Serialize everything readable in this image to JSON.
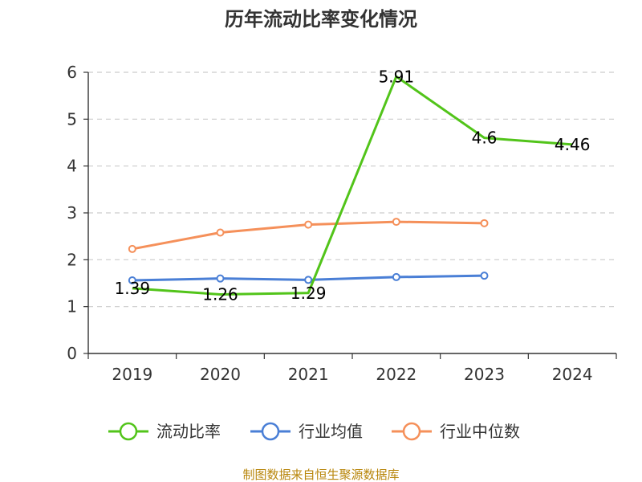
{
  "source_note": "制图数据来自恒生聚源数据库",
  "colors": {
    "series": [
      "#52c41a",
      "#4a7fd6",
      "#f5905a"
    ],
    "grid": "#cccccc",
    "axis": "#333333",
    "source": "#b8860b"
  },
  "chart_data": {
    "type": "line",
    "title": "历年流动比率变化情况",
    "xlabel": "",
    "ylabel": "",
    "categories": [
      "2019",
      "2020",
      "2021",
      "2022",
      "2023",
      "2024"
    ],
    "ylim": [
      0,
      6
    ],
    "yticks": [
      0,
      1,
      2,
      3,
      4,
      5,
      6
    ],
    "grid": "horizontal dashed",
    "legend_position": "bottom",
    "series": [
      {
        "name": "流动比率",
        "values": [
          1.39,
          1.26,
          1.29,
          5.91,
          4.6,
          4.46
        ],
        "labels": [
          "1.39",
          "1.26",
          "1.29",
          "5.91",
          "4.6",
          "4.46"
        ],
        "show_labels": true
      },
      {
        "name": "行业均值",
        "values": [
          1.56,
          1.6,
          1.57,
          1.63,
          1.66,
          null
        ],
        "show_labels": false
      },
      {
        "name": "行业中位数",
        "values": [
          2.23,
          2.58,
          2.75,
          2.81,
          2.78,
          null
        ],
        "show_labels": false
      }
    ]
  }
}
